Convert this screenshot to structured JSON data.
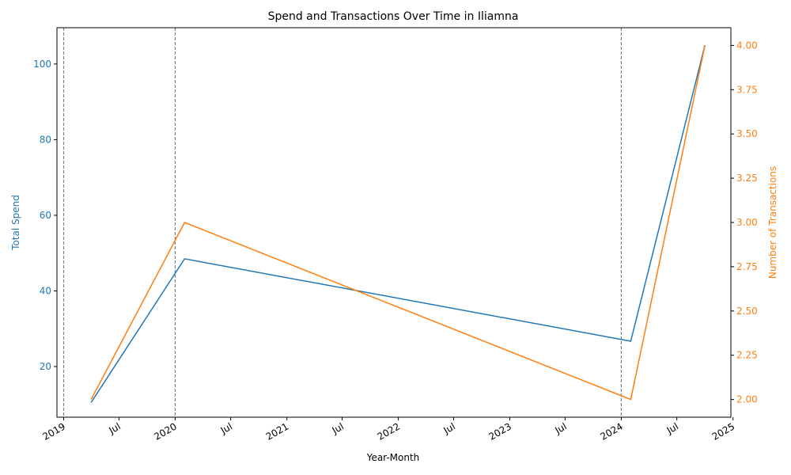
{
  "colors": {
    "spend": "#1f77b4",
    "transactions": "#ff7f0e",
    "year_marker": "#808080",
    "axis": "#000000"
  },
  "chart_data": {
    "type": "line",
    "title": "Spend and Transactions Over Time in Iliamna",
    "xlabel": "Year-Month",
    "ylabel_left": "Total Spend",
    "ylabel_right": "Number of Transactions",
    "x": [
      "2019-04",
      "2020-02",
      "2024-02",
      "2024-10"
    ],
    "series": [
      {
        "axis": "left",
        "values": [
          10.5,
          48.5,
          26.7,
          105.0
        ]
      },
      {
        "axis": "right",
        "values": [
          2.0,
          3.0,
          2.0,
          4.0
        ]
      }
    ],
    "xlim": [
      "2018-12-10",
      "2024-12-25"
    ],
    "ylim_left": [
      6.6,
      109.6
    ],
    "ylim_right": [
      1.9,
      4.1
    ],
    "x_ticks": [
      {
        "date": "2019-01",
        "label": "2019"
      },
      {
        "date": "2019-07",
        "label": "Jul"
      },
      {
        "date": "2020-01",
        "label": "2020"
      },
      {
        "date": "2020-07",
        "label": "Jul"
      },
      {
        "date": "2021-01",
        "label": "2021"
      },
      {
        "date": "2021-07",
        "label": "Jul"
      },
      {
        "date": "2022-01",
        "label": "2022"
      },
      {
        "date": "2022-07",
        "label": "Jul"
      },
      {
        "date": "2023-01",
        "label": "2023"
      },
      {
        "date": "2023-07",
        "label": "Jul"
      },
      {
        "date": "2024-01",
        "label": "2024"
      },
      {
        "date": "2024-07",
        "label": "Jul"
      },
      {
        "date": "2025-01",
        "label": "2025"
      }
    ],
    "y_ticks_left": [
      "20",
      "40",
      "60",
      "80",
      "100"
    ],
    "y_ticks_right": [
      "2.00",
      "2.25",
      "2.50",
      "2.75",
      "3.00",
      "3.25",
      "3.50",
      "3.75",
      "4.00"
    ],
    "year_markers": [
      "2019-01",
      "2020-01",
      "2024-01"
    ],
    "grid": false,
    "legend": false
  }
}
